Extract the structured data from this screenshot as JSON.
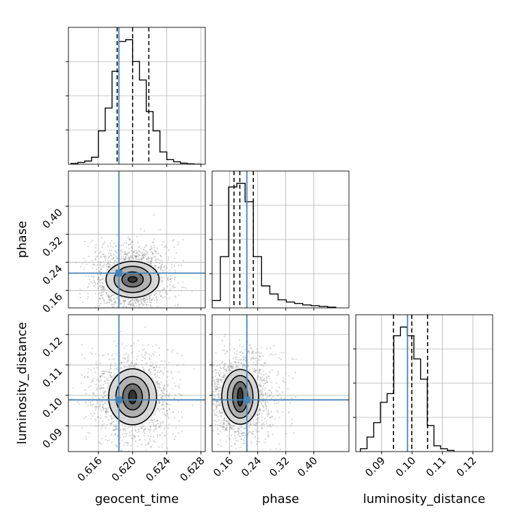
{
  "chart_data": {
    "type": "corner",
    "parameters": [
      "geocent_time",
      "phase",
      "luminosity_distance"
    ],
    "injection": {
      "geocent_time": 0.6184,
      "phase": 0.209,
      "luminosity_distance": 0.0985
    },
    "colors": {
      "truth": "#4682b4",
      "hist": "#000000",
      "scatter": "#808080",
      "grid": "#b0b0b0"
    },
    "axes": {
      "geocent_time": {
        "lim": [
          0.6125,
          0.6285
        ],
        "ticks": [
          0.616,
          0.62,
          0.624,
          0.628
        ],
        "tick_labels": [
          "0.616",
          "0.620",
          "0.624",
          "0.628"
        ]
      },
      "phase": {
        "lim": [
          0.11,
          0.5
        ],
        "ticks": [
          0.16,
          0.24,
          0.32,
          0.4
        ],
        "tick_labels": [
          "0.16",
          "0.24",
          "0.32",
          "0.40"
        ]
      },
      "luminosity_distance": {
        "lim": [
          0.0815,
          0.1265
        ],
        "ticks": [
          0.09,
          0.1,
          0.11,
          0.12
        ],
        "tick_labels": [
          "0.09",
          "0.10",
          "0.11",
          "0.12"
        ]
      }
    },
    "marginals": {
      "geocent_time": {
        "bin_edges": [
          0.6128,
          0.6136,
          0.6144,
          0.6152,
          0.616,
          0.6168,
          0.6176,
          0.6184,
          0.6192,
          0.62,
          0.6208,
          0.6216,
          0.6224,
          0.6232,
          0.624,
          0.6248,
          0.6256,
          0.6264,
          0.6272,
          0.628
        ],
        "counts": [
          2,
          5,
          9,
          20,
          95,
          160,
          265,
          350,
          355,
          293,
          240,
          150,
          95,
          35,
          13,
          7,
          3,
          1,
          0
        ],
        "quantiles": [
          0.6182,
          0.62,
          0.6219
        ]
      },
      "phase": {
        "bin_edges": [
          0.11,
          0.1335,
          0.157,
          0.1805,
          0.204,
          0.2275,
          0.251,
          0.2745,
          0.298,
          0.3215,
          0.345,
          0.3685,
          0.392,
          0.4155,
          0.439,
          0.4625
        ],
        "counts": [
          10,
          70,
          165,
          170,
          145,
          70,
          30,
          19,
          11,
          8,
          6,
          4,
          3,
          2,
          1
        ],
        "quantiles": [
          0.1724,
          0.189,
          0.2275
        ]
      },
      "luminosity_distance": {
        "bin_edges": [
          0.083,
          0.0852,
          0.0874,
          0.0896,
          0.0918,
          0.094,
          0.0962,
          0.0984,
          0.1006,
          0.1028,
          0.105,
          0.1072,
          0.1094,
          0.1116,
          0.1138
        ],
        "counts": [
          5,
          25,
          50,
          85,
          100,
          200,
          215,
          200,
          160,
          125,
          45,
          10,
          5,
          2
        ],
        "quantiles": [
          0.0939,
          0.0999,
          0.1051
        ]
      }
    },
    "joint": [
      {
        "x": "geocent_time",
        "y": "phase",
        "cx": 0.62,
        "cy": 0.191,
        "sx": 0.00145,
        "sy": 0.031,
        "rho": 0.0,
        "spread": [
          0.006,
          0.12
        ],
        "contours": [
          [
            0.00052,
            0.0079
          ],
          [
            0.00125,
            0.0215
          ],
          [
            0.00215,
            0.0375
          ],
          [
            0.0031,
            0.0515
          ]
        ]
      },
      {
        "x": "geocent_time",
        "y": "luminosity_distance",
        "cx": 0.62,
        "cy": 0.0995,
        "sx": 0.00145,
        "sy": 0.0046,
        "rho": 0.0,
        "spread": [
          0.006,
          0.0175
        ],
        "contours": [
          [
            0.00045,
            0.0022
          ],
          [
            0.00115,
            0.0043
          ],
          [
            0.00195,
            0.0067
          ],
          [
            0.0028,
            0.0092
          ]
        ]
      },
      {
        "x": "phase",
        "y": "luminosity_distance",
        "cx": 0.19,
        "cy": 0.0995,
        "sx": 0.031,
        "sy": 0.0046,
        "rho": 0.0,
        "spread": [
          0.16,
          0.0175
        ],
        "contours": [
          [
            0.0075,
            0.003
          ],
          [
            0.0215,
            0.005
          ],
          [
            0.0365,
            0.007
          ],
          [
            0.0525,
            0.009
          ]
        ]
      }
    ]
  }
}
